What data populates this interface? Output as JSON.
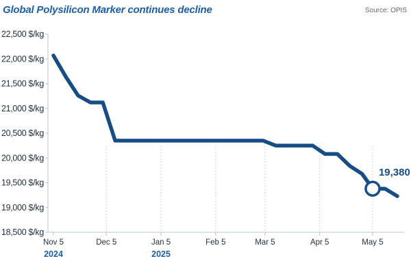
{
  "header": {
    "title": "Global Polysilicon Marker continues decline",
    "source": "Source: OPIS"
  },
  "colors": {
    "line": "#174d86",
    "title": "#1c5fa8",
    "axis": "#b8c4ce",
    "text": "#23313f"
  },
  "chart_data": {
    "type": "line",
    "title": "Global Polysilicon Marker continues decline",
    "xlabel": "",
    "ylabel": "",
    "ylim": [
      18500,
      22500
    ],
    "y_ticks": [
      22500,
      22000,
      21500,
      21000,
      20500,
      20000,
      19500,
      19000,
      18500
    ],
    "y_tick_labels": [
      "22,500 $/kg",
      "22,000 $/kg",
      "21,500 $/kg",
      "21,000 $/kg",
      "20,500 $/kg",
      "20,000 $/kg",
      "19,500 $/kg",
      "19,000 $/kg",
      "18,500 $/kg"
    ],
    "x_range": [
      "2024-11-05",
      "2025-05-19"
    ],
    "x_ticks": [
      "2024-11-05",
      "2024-12-05",
      "2025-01-05",
      "2025-02-05",
      "2025-03-05",
      "2025-04-05",
      "2025-05-05"
    ],
    "x_tick_labels": [
      "Nov 5",
      "Dec 5",
      "Jan 5",
      "Feb 5",
      "Mar 5",
      "Apr 5",
      "May 5"
    ],
    "x_year_labels": [
      {
        "date": "2024-11-05",
        "label": "2024"
      },
      {
        "date": "2025-01-05",
        "label": "2025"
      }
    ],
    "grid": "vertical-dotted",
    "series": [
      {
        "points": [
          {
            "x": "2024-11-05",
            "y": 22070
          },
          {
            "x": "2024-11-12",
            "y": 21640
          },
          {
            "x": "2024-11-19",
            "y": 21260
          },
          {
            "x": "2024-11-26",
            "y": 21120
          },
          {
            "x": "2024-12-03",
            "y": 21120
          },
          {
            "x": "2024-12-10",
            "y": 20350
          },
          {
            "x": "2024-12-17",
            "y": 20350
          },
          {
            "x": "2024-12-24",
            "y": 20350
          },
          {
            "x": "2024-12-31",
            "y": 20350
          },
          {
            "x": "2025-01-07",
            "y": 20350
          },
          {
            "x": "2025-01-14",
            "y": 20350
          },
          {
            "x": "2025-01-21",
            "y": 20350
          },
          {
            "x": "2025-01-28",
            "y": 20350
          },
          {
            "x": "2025-02-04",
            "y": 20350
          },
          {
            "x": "2025-02-11",
            "y": 20350
          },
          {
            "x": "2025-02-18",
            "y": 20350
          },
          {
            "x": "2025-02-25",
            "y": 20350
          },
          {
            "x": "2025-03-04",
            "y": 20350
          },
          {
            "x": "2025-03-11",
            "y": 20250
          },
          {
            "x": "2025-03-18",
            "y": 20250
          },
          {
            "x": "2025-03-25",
            "y": 20250
          },
          {
            "x": "2025-04-01",
            "y": 20250
          },
          {
            "x": "2025-04-08",
            "y": 20080
          },
          {
            "x": "2025-04-15",
            "y": 20080
          },
          {
            "x": "2025-04-22",
            "y": 19840
          },
          {
            "x": "2025-04-29",
            "y": 19680
          },
          {
            "x": "2025-05-05",
            "y": 19380
          },
          {
            "x": "2025-05-12",
            "y": 19380
          },
          {
            "x": "2025-05-19",
            "y": 19230
          }
        ]
      }
    ],
    "annotations": [
      {
        "x": "2025-05-05",
        "y": 19380,
        "label": "19,380"
      }
    ]
  }
}
